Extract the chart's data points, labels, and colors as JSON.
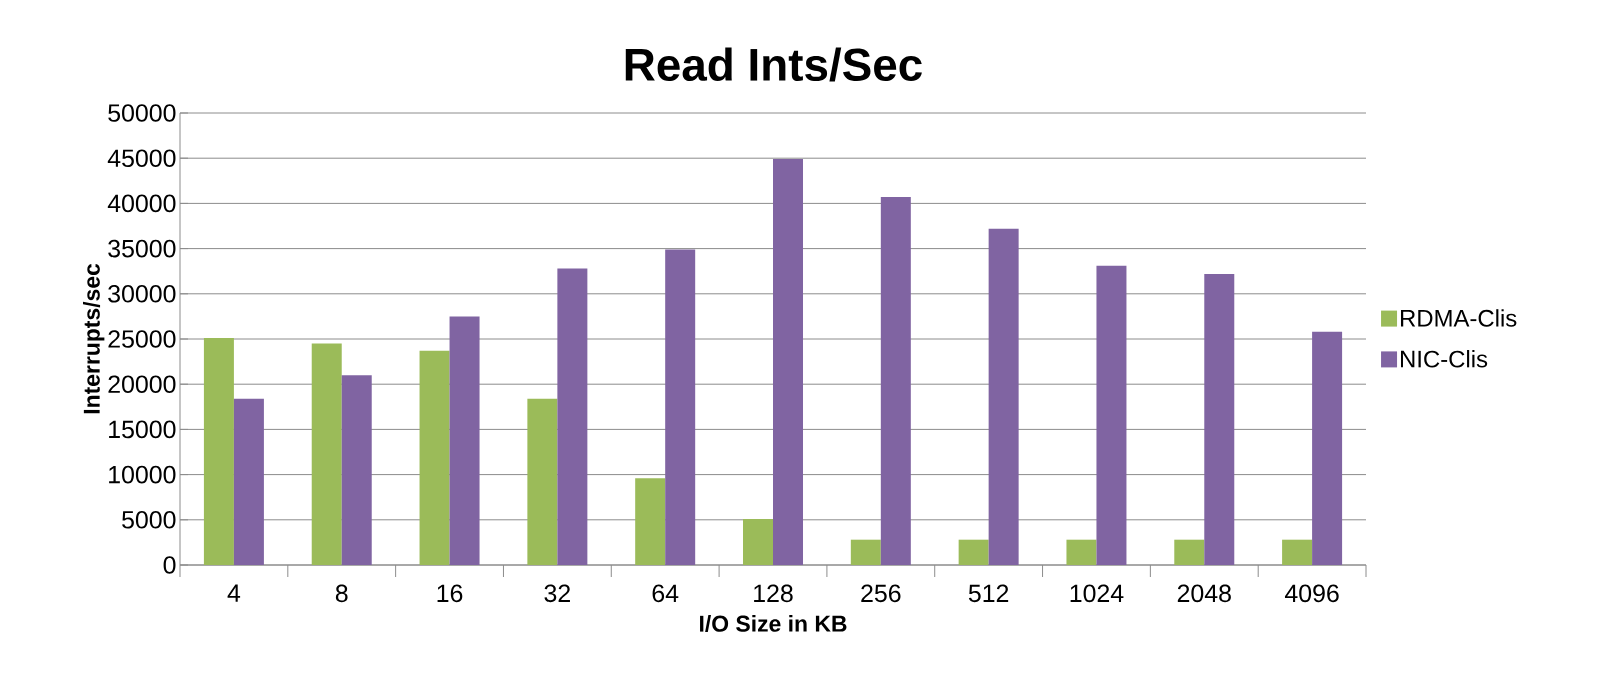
{
  "chart_data": {
    "type": "bar",
    "title": "Read Ints/Sec",
    "xlabel": "I/O Size in KB",
    "ylabel": "Interrupts/sec",
    "categories": [
      "4",
      "8",
      "16",
      "32",
      "64",
      "128",
      "256",
      "512",
      "1024",
      "2048",
      "4096"
    ],
    "series": [
      {
        "name": "RDMA-Clis",
        "color": "#9bbb59",
        "values": [
          25100,
          24500,
          23700,
          18400,
          9600,
          5100,
          2800,
          2800,
          2800,
          2800,
          2800
        ]
      },
      {
        "name": "NIC-Clis",
        "color": "#8064a2",
        "values": [
          18400,
          21000,
          27500,
          32800,
          34900,
          44900,
          40700,
          37200,
          33100,
          32200,
          25800
        ]
      }
    ],
    "ylim": [
      0,
      50000
    ],
    "yticks": [
      0,
      5000,
      10000,
      15000,
      20000,
      25000,
      30000,
      35000,
      40000,
      45000,
      50000
    ],
    "grid": "y",
    "legend": "right"
  }
}
